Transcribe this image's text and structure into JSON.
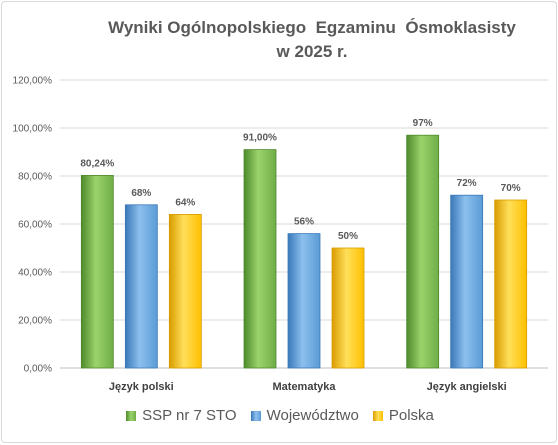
{
  "chart_data": {
    "type": "bar",
    "title": [
      "Wyniki Ogólnopolskiego  Egzaminu  Ósmoklasisty",
      "w 2025 r."
    ],
    "categories": [
      "Język polski",
      "Matematyka",
      "Język angielski"
    ],
    "series": [
      {
        "name": "SSP nr 7 STO",
        "values": [
          80.24,
          91.0,
          97
        ],
        "labels": [
          "80,24%",
          "91,00%",
          "97%"
        ],
        "color": "#70ad47",
        "color_light": "#9bd36b",
        "color_dark": "#4e8a2c"
      },
      {
        "name": "Województwo",
        "values": [
          68,
          56,
          72
        ],
        "labels": [
          "68%",
          "56%",
          "72%"
        ],
        "color": "#5b9bd5",
        "color_light": "#8cc0ee",
        "color_dark": "#3a78b8"
      },
      {
        "name": "Polska",
        "values": [
          64,
          50,
          70
        ],
        "labels": [
          "64%",
          "50%",
          "70%"
        ],
        "color": "#ffc000",
        "color_light": "#ffdf5a",
        "color_dark": "#d99c00"
      }
    ],
    "ylim": [
      0,
      120
    ],
    "yticks": [
      0,
      20,
      40,
      60,
      80,
      100,
      120
    ],
    "ytick_labels": [
      "0,00%",
      "20,00%",
      "40,00%",
      "60,00%",
      "80,00%",
      "100,00%",
      "120,00%"
    ],
    "grid": true,
    "legend_position": "bottom"
  }
}
